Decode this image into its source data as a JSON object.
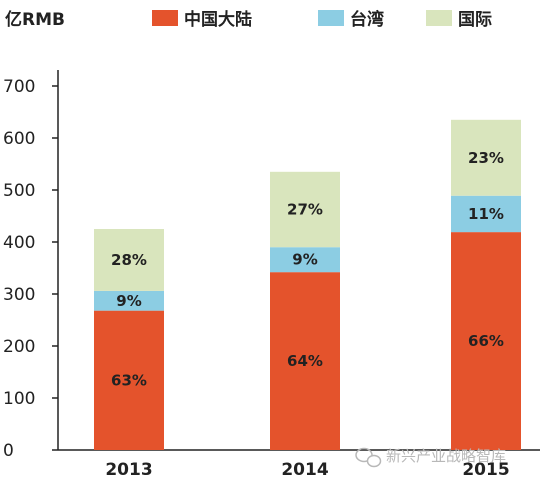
{
  "chart_data": {
    "type": "bar",
    "stacked": true,
    "unit_label": "亿RMB",
    "categories": [
      "2013",
      "2014",
      "2015"
    ],
    "totals": [
      425,
      535,
      635
    ],
    "series": [
      {
        "name": "中国大陆",
        "color": "#e4532c",
        "values": [
          268,
          342,
          419
        ],
        "labels": [
          "63%",
          "64%",
          "66%"
        ]
      },
      {
        "name": "台湾",
        "color": "#8ccde3",
        "values": [
          38,
          48,
          70
        ],
        "labels": [
          "9%",
          "9%",
          "11%"
        ]
      },
      {
        "name": "国际",
        "color": "#d9e5bd",
        "values": [
          119,
          145,
          146
        ],
        "labels": [
          "28%",
          "27%",
          "23%"
        ]
      }
    ],
    "ylim": [
      0,
      700
    ],
    "yticks": [
      "0",
      "100",
      "200",
      "300",
      "400",
      "500",
      "600",
      "700"
    ],
    "legend_position": "top",
    "grid": false
  },
  "watermark": {
    "text": "新兴产业战略智库"
  }
}
